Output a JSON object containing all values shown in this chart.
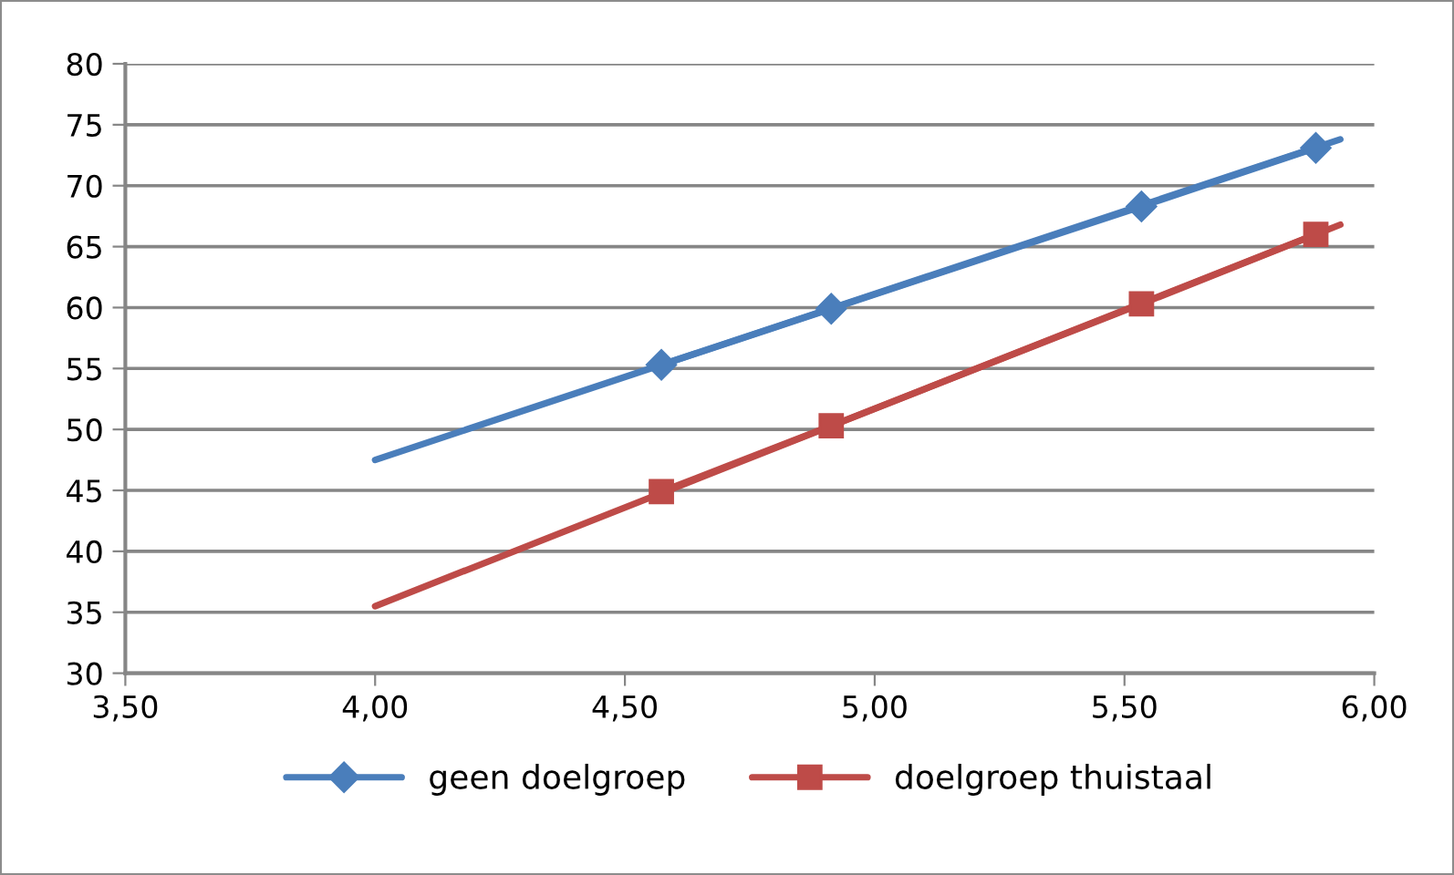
{
  "chart_data": {
    "type": "line",
    "series": [
      {
        "name": "geen doelgroep",
        "color": "#4a7ebb",
        "marker": "diamond",
        "x": [
          4.573,
          4.913,
          5.534,
          5.883
        ],
        "values": [
          55.3,
          59.9,
          68.3,
          73.1
        ]
      },
      {
        "name": "doelgroep thuistaal",
        "color": "#be4b48",
        "marker": "square",
        "x": [
          4.573,
          4.913,
          5.534,
          5.883
        ],
        "values": [
          44.9,
          50.3,
          60.3,
          66.0
        ]
      },
      {
        "color": "#4a7ebb",
        "marker": "none",
        "x": [
          4.0,
          5.932
        ],
        "values": [
          47.5,
          73.8
        ]
      },
      {
        "color": "#be4b48",
        "marker": "none",
        "x": [
          4.0,
          5.932
        ],
        "values": [
          35.5,
          66.8
        ]
      }
    ],
    "xlim": [
      3.5,
      6.0
    ],
    "xticks": [
      {
        "value": 3.5,
        "label": "3,50"
      },
      {
        "value": 4.0,
        "label": "4,00"
      },
      {
        "value": 4.5,
        "label": "4,50"
      },
      {
        "value": 5.0,
        "label": "5,00"
      },
      {
        "value": 5.5,
        "label": "5,50"
      },
      {
        "value": 6.0,
        "label": "6,00"
      }
    ],
    "ylim": [
      30,
      80
    ],
    "yticks": [
      30,
      35,
      40,
      45,
      50,
      55,
      60,
      65,
      70,
      75,
      80
    ],
    "grid": "y",
    "legend": "bottom",
    "line_style": "solid"
  }
}
